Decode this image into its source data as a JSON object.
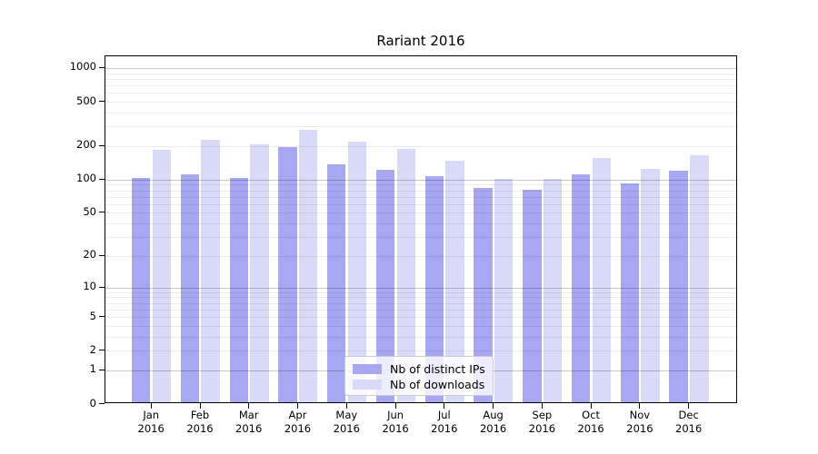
{
  "title": "Rariant 2016",
  "legend": {
    "items": [
      {
        "label": "Nb of distinct IPs",
        "color": "#a7a7f2"
      },
      {
        "label": "Nb of downloads",
        "color": "#d9d9f8"
      }
    ]
  },
  "axes": {
    "y_ticks": [
      1000,
      500,
      200,
      100,
      50,
      20,
      10,
      5,
      2,
      1,
      0
    ],
    "year_line": "2016"
  },
  "chart_data": {
    "type": "bar",
    "title": "Rariant 2016",
    "categories": [
      "Jan 2016",
      "Feb 2016",
      "Mar 2016",
      "Apr 2016",
      "May 2016",
      "Jun 2016",
      "Jul 2016",
      "Aug 2016",
      "Sep 2016",
      "Oct 2016",
      "Nov 2016",
      "Dec 2016"
    ],
    "series": [
      {
        "name": "Nb of distinct IPs",
        "color": "#a7a7f2",
        "values": [
          100,
          108,
          100,
          188,
          132,
          118,
          104,
          81,
          78,
          107,
          89,
          115
        ]
      },
      {
        "name": "Nb of downloads",
        "color": "#d9d9f8",
        "values": [
          180,
          218,
          200,
          272,
          212,
          183,
          142,
          98,
          97,
          152,
          120,
          160
        ]
      }
    ],
    "yscale": "log10(value+1)",
    "ylim": [
      0,
      1230
    ],
    "ytick_values": [
      0,
      1,
      2,
      5,
      10,
      20,
      50,
      100,
      200,
      500,
      1000
    ],
    "grid": true,
    "legend_position": "lower center",
    "xlabel": "",
    "ylabel": ""
  }
}
